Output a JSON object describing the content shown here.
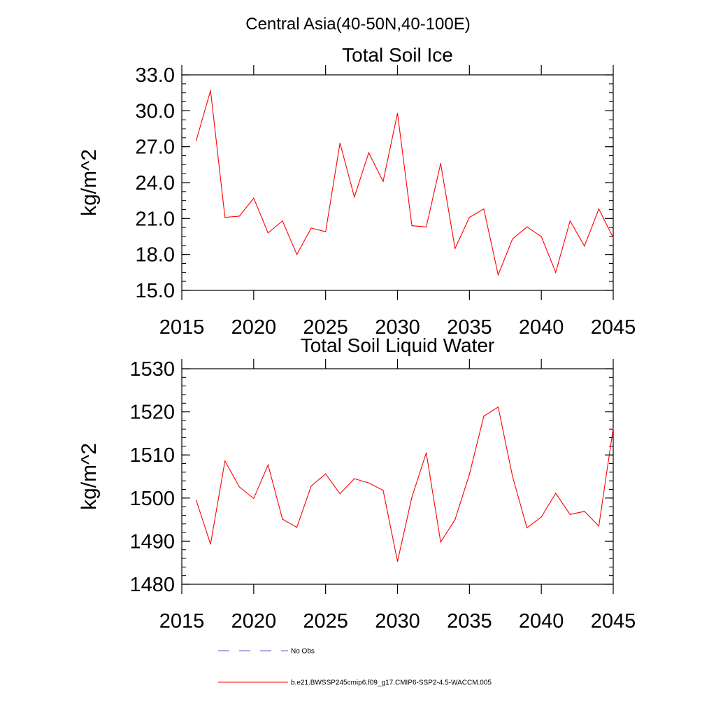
{
  "figure_title": "Central Asia(40-50N,40-100E)",
  "chart_data": [
    {
      "type": "line",
      "title": "Total Soil Ice",
      "xlabel": "",
      "ylabel": "kg/m^2",
      "xlim": [
        2015,
        2045
      ],
      "ylim": [
        15.0,
        33.0
      ],
      "x_major_ticks": [
        2015,
        2020,
        2025,
        2030,
        2035,
        2040,
        2045
      ],
      "x_tick_labels": [
        "2015",
        "2020",
        "2025",
        "2030",
        "2035",
        "2040",
        "2045"
      ],
      "y_major_ticks": [
        15.0,
        18.0,
        21.0,
        24.0,
        27.0,
        30.0,
        33.0
      ],
      "y_tick_labels": [
        "15.0",
        "18.0",
        "21.0",
        "24.0",
        "27.0",
        "30.0",
        "33.0"
      ],
      "y_minor_step": 0.75,
      "x": [
        2016,
        2017,
        2018,
        2019,
        2020,
        2021,
        2022,
        2023,
        2024,
        2025,
        2026,
        2027,
        2028,
        2029,
        2030,
        2031,
        2032,
        2033,
        2034,
        2035,
        2036,
        2037,
        2038,
        2039,
        2040,
        2041,
        2042,
        2043,
        2044,
        2045
      ],
      "series": [
        {
          "name": "b.e21.BWSSP245cmip6.f09_g17.CMIP6-SSP2-4.5-WACCM.005",
          "color": "#ff0000",
          "values": [
            27.5,
            31.7,
            21.1,
            21.2,
            22.7,
            19.8,
            20.8,
            18.0,
            20.2,
            19.9,
            27.3,
            22.8,
            26.5,
            24.1,
            29.8,
            20.4,
            20.3,
            25.6,
            18.5,
            21.1,
            21.8,
            16.3,
            19.3,
            20.3,
            19.5,
            16.5,
            20.8,
            18.7,
            21.8,
            19.4
          ]
        }
      ]
    },
    {
      "type": "line",
      "title": "Total Soil Liquid Water",
      "xlabel": "",
      "ylabel": "kg/m^2",
      "xlim": [
        2015,
        2045
      ],
      "ylim": [
        1480,
        1530
      ],
      "x_major_ticks": [
        2015,
        2020,
        2025,
        2030,
        2035,
        2040,
        2045
      ],
      "x_tick_labels": [
        "2015",
        "2020",
        "2025",
        "2030",
        "2035",
        "2040",
        "2045"
      ],
      "y_major_ticks": [
        1480,
        1490,
        1500,
        1510,
        1520,
        1530
      ],
      "y_tick_labels": [
        "1480",
        "1490",
        "1500",
        "1510",
        "1520",
        "1530"
      ],
      "y_minor_step": 2,
      "x": [
        2016,
        2017,
        2018,
        2019,
        2020,
        2021,
        2022,
        2023,
        2024,
        2025,
        2026,
        2027,
        2028,
        2029,
        2030,
        2031,
        2032,
        2033,
        2034,
        2035,
        2036,
        2037,
        2038,
        2039,
        2040,
        2041,
        2042,
        2043,
        2044,
        2045
      ],
      "series": [
        {
          "name": "b.e21.BWSSP245cmip6.f09_g17.CMIP6-SSP2-4.5-WACCM.005",
          "color": "#ff0000",
          "values": [
            1499.5,
            1489.3,
            1508.6,
            1502.6,
            1499.9,
            1507.7,
            1495.1,
            1493.2,
            1502.8,
            1505.6,
            1501.0,
            1504.5,
            1503.5,
            1501.8,
            1485.3,
            1500.2,
            1510.5,
            1489.8,
            1495.0,
            1505.5,
            1519.0,
            1521.1,
            1505.0,
            1493.1,
            1495.6,
            1501.1,
            1496.2,
            1496.9,
            1493.5,
            1516.2
          ]
        }
      ]
    }
  ],
  "legend": {
    "placement": "bottom-left",
    "items": [
      {
        "label": "No Obs",
        "color": "#5a5ac8",
        "style": "dashed"
      },
      {
        "label": "b.e21.BWSSP245cmip6.f09_g17.CMIP6-SSP2-4.5-WACCM.005",
        "color": "#ff0000",
        "style": "solid"
      }
    ]
  }
}
